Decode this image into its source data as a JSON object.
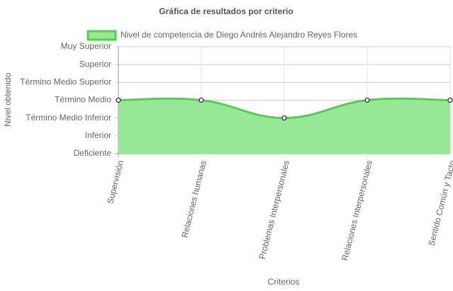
{
  "chart_data": {
    "type": "line",
    "title": "Gráfica de resultados por criterio",
    "x_label": "Criterios",
    "y_label": "Nivel obtenido",
    "categories": [
      "Supervisión",
      "Relaciones humanas",
      "Problemas Interpersonales",
      "Relaciones Interpersonales",
      "Sentido Común y Tacto"
    ],
    "series": [
      {
        "name": "Nivel de competencia de Diego Andrés Alejandro Reyes Flores",
        "color": "#4fd14c",
        "fill": "#97e896",
        "values": [
          3,
          3,
          2,
          3,
          3
        ]
      }
    ],
    "ylim": [
      0,
      6
    ],
    "yticks": [
      {
        "value": 0,
        "label": "Deficiente"
      },
      {
        "value": 1,
        "label": "Inferior"
      },
      {
        "value": 2,
        "label": "Término Medio Inferior"
      },
      {
        "value": 3,
        "label": "Término Medio"
      },
      {
        "value": 4,
        "label": "Término Medio Superior"
      },
      {
        "value": 5,
        "label": "Superior"
      },
      {
        "value": 6,
        "label": "Muy Superior"
      }
    ],
    "grid": true
  }
}
